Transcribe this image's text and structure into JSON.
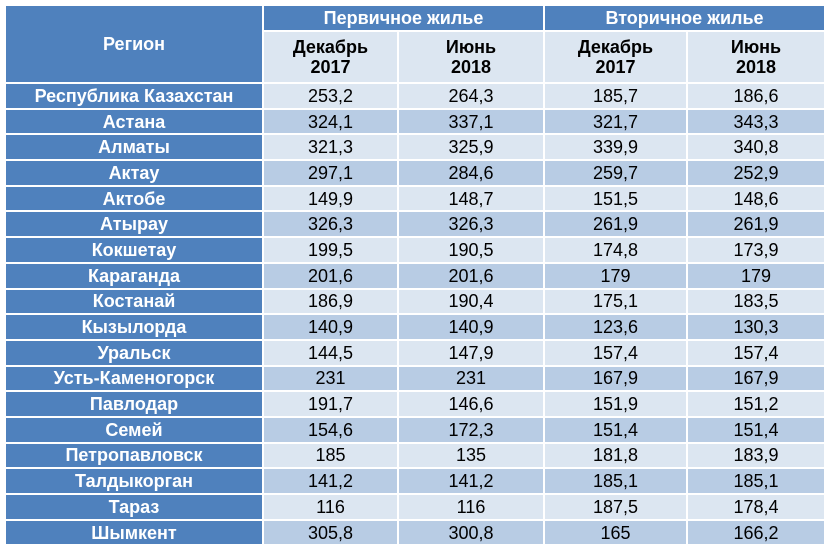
{
  "table": {
    "header": {
      "region": "Регион",
      "groups": [
        {
          "title": "Первичное жилье",
          "columns": [
            "Декабрь\n2017",
            "Июнь\n2018"
          ]
        },
        {
          "title": "Вторичное жилье",
          "columns": [
            "Декабрь\n2017",
            "Июнь\n2018"
          ]
        }
      ]
    },
    "rows": [
      [
        "Республика Казахстан",
        "253,2",
        "264,3",
        "185,7",
        "186,6"
      ],
      [
        "Астана",
        "324,1",
        "337,1",
        "321,7",
        "343,3"
      ],
      [
        "Алматы",
        "321,3",
        "325,9",
        "339,9",
        "340,8"
      ],
      [
        "Актау",
        "297,1",
        "284,6",
        "259,7",
        "252,9"
      ],
      [
        "Актобе",
        "149,9",
        "148,7",
        "151,5",
        "148,6"
      ],
      [
        "Атырау",
        "326,3",
        "326,3",
        "261,9",
        "261,9"
      ],
      [
        "Кокшетау",
        "199,5",
        "190,5",
        "174,8",
        "173,9"
      ],
      [
        "Караганда",
        "201,6",
        "201,6",
        "179",
        "179"
      ],
      [
        "Костанай",
        "186,9",
        "190,4",
        "175,1",
        "183,5"
      ],
      [
        "Кызылорда",
        "140,9",
        "140,9",
        "123,6",
        "130,3"
      ],
      [
        "Уральск",
        "144,5",
        "147,9",
        "157,4",
        "157,4"
      ],
      [
        "Усть-Каменогорск",
        "231",
        "231",
        "167,9",
        "167,9"
      ],
      [
        "Павлодар",
        "191,7",
        "146,6",
        "151,9",
        "151,2"
      ],
      [
        "Семей",
        "154,6",
        "172,3",
        "151,4",
        "151,4"
      ],
      [
        "Петропавловск",
        "185",
        "135",
        "181,8",
        "183,9"
      ],
      [
        "Талдыкорган",
        "141,2",
        "141,2",
        "185,1",
        "185,1"
      ],
      [
        "Тараз",
        "116",
        "116",
        "187,5",
        "178,4"
      ],
      [
        "Шымкент",
        "305,8",
        "300,8",
        "165",
        "166,2"
      ]
    ]
  }
}
